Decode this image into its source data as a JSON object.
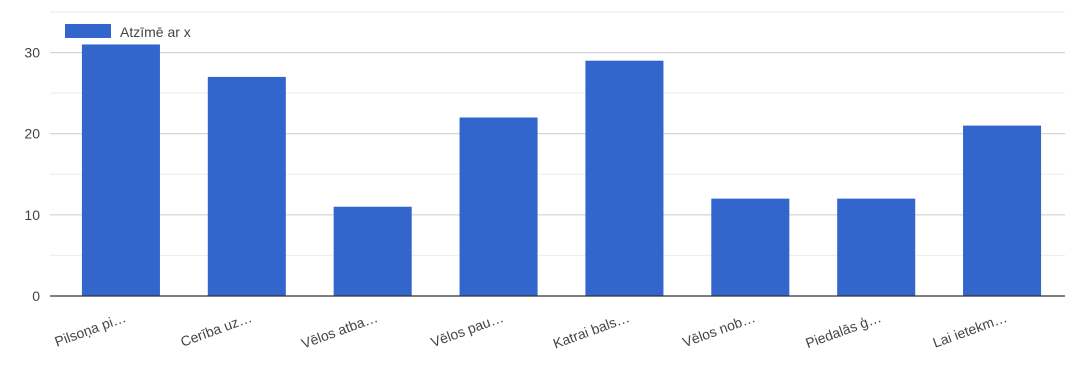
{
  "chart_data": {
    "type": "bar",
    "categories": [
      "Pilsoņa pi…",
      "Cerība uz…",
      "Vēlos atba…",
      "Vēlos pau…",
      "Katrai bals…",
      "Vēlos nob…",
      "Piedalās ģ…",
      "Lai ietekm…"
    ],
    "series": [
      {
        "name": "Atzīmē ar x",
        "values": [
          31,
          27,
          11,
          22,
          29,
          12,
          12,
          21
        ],
        "color": "#3366cc"
      }
    ],
    "ylim": [
      0,
      35
    ],
    "yticks": [
      0,
      10,
      20,
      30
    ],
    "grid": true,
    "legend": "top-left",
    "xlabel": "",
    "ylabel": ""
  }
}
